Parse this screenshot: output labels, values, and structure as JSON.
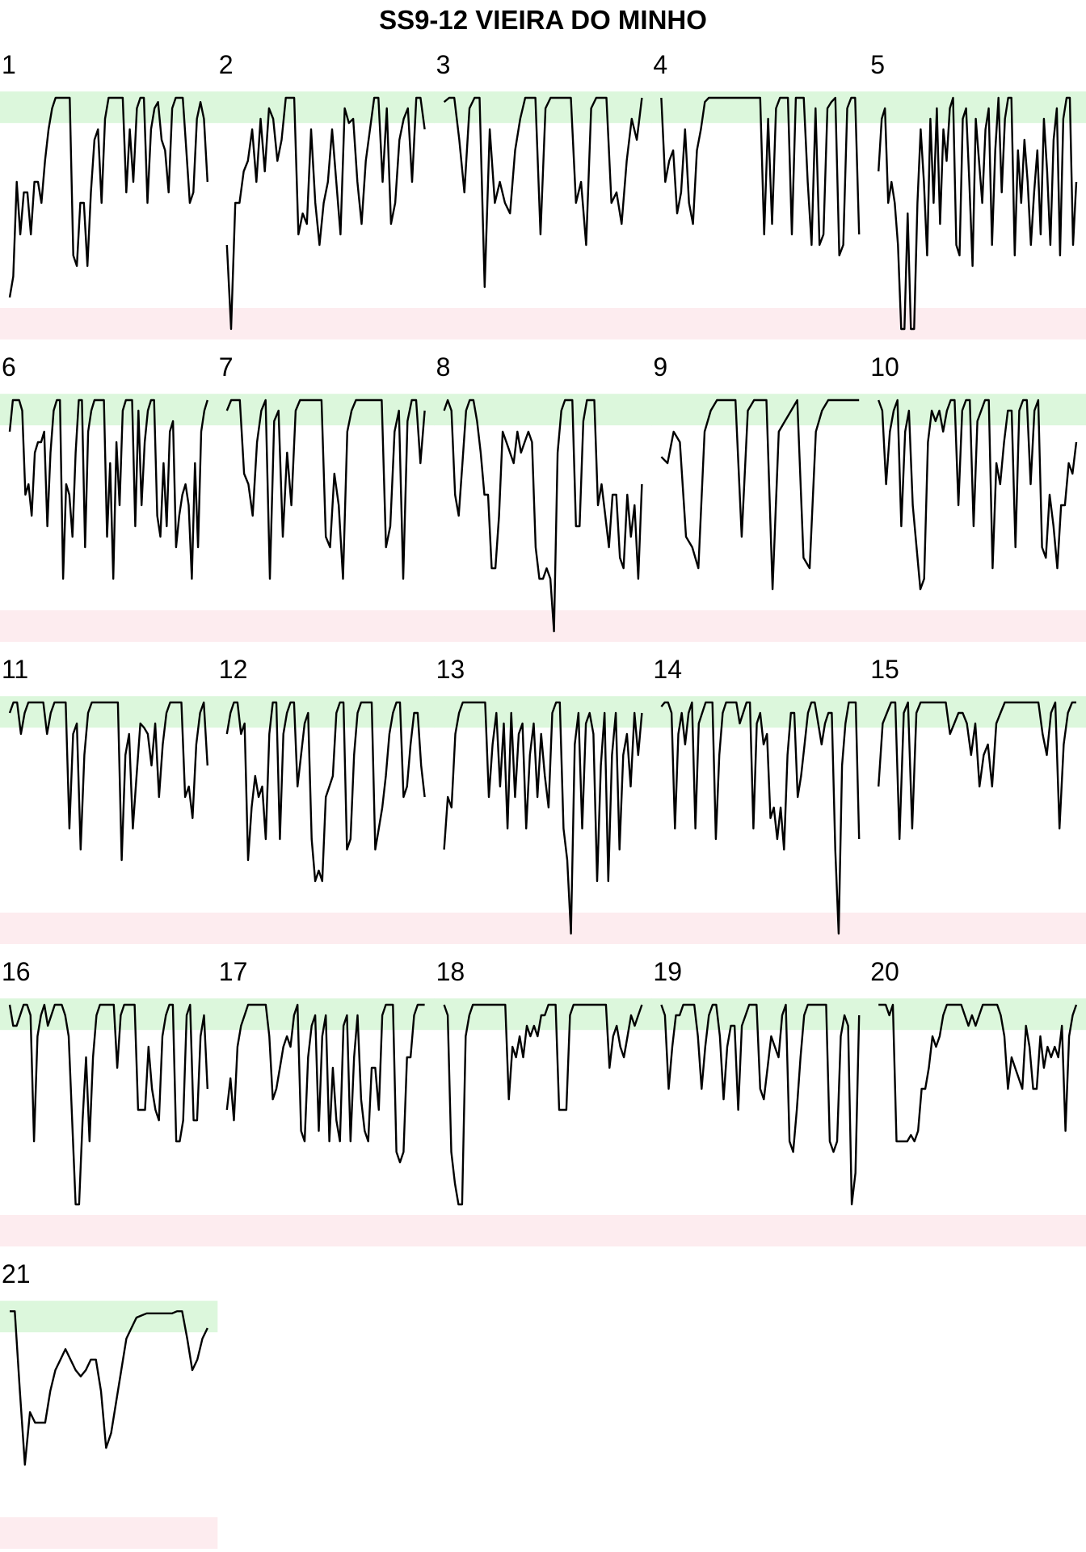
{
  "title": "SS9-12 VIEIRA DO MINHO",
  "colors": {
    "high_band": "#dcf7dc",
    "low_band": "#fdecef",
    "line": "#000000",
    "background": "#ffffff"
  },
  "chart_data": {
    "type": "line",
    "title": "SS9-12 VIEIRA DO MINHO",
    "layout": "small multiples, 5 columns",
    "xlabel": "",
    "ylabel": "",
    "ylim": [
      0,
      1
    ],
    "grid": false,
    "bands": [
      {
        "name": "high",
        "range": [
          0.88,
          1.03
        ],
        "color": "#dcf7dc"
      },
      {
        "name": "low",
        "range": [
          -0.15,
          0.0
        ],
        "color": "#fdecef"
      }
    ],
    "panels": [
      {
        "label": "1",
        "values": [
          0.05,
          0.15,
          0.6,
          0.35,
          0.55,
          0.55,
          0.35,
          0.6,
          0.6,
          0.5,
          0.7,
          0.85,
          0.95,
          1,
          1,
          1,
          1,
          1,
          0.25,
          0.2,
          0.5,
          0.5,
          0.2,
          0.55,
          0.8,
          0.85,
          0.5,
          0.9,
          1,
          1,
          1,
          1,
          1,
          0.55,
          0.85,
          0.6,
          0.95,
          1,
          1,
          0.5,
          0.85,
          0.95,
          0.98,
          0.8,
          0.75,
          0.55,
          0.95,
          1,
          1,
          1,
          0.75,
          0.5,
          0.55,
          0.9,
          0.98,
          0.9,
          0.6
        ]
      },
      {
        "label": "2",
        "values": [
          0.3,
          -0.1,
          0.5,
          0.5,
          0.65,
          0.7,
          0.85,
          0.6,
          0.9,
          0.65,
          0.95,
          0.9,
          0.7,
          0.8,
          1,
          1,
          1,
          0.35,
          0.45,
          0.4,
          0.85,
          0.5,
          0.3,
          0.5,
          0.6,
          0.85,
          0.6,
          0.35,
          0.95,
          0.88,
          0.9,
          0.6,
          0.4,
          0.7,
          0.85,
          1,
          1,
          0.6,
          0.95,
          0.4,
          0.5,
          0.8,
          0.9,
          0.95,
          0.6,
          1,
          1,
          0.85
        ]
      },
      {
        "label": "3",
        "values": [
          0.98,
          1,
          1,
          0.8,
          0.55,
          0.95,
          1,
          1,
          0.1,
          0.85,
          0.5,
          0.6,
          0.5,
          0.45,
          0.75,
          0.9,
          1,
          1,
          1,
          0.35,
          0.95,
          1,
          1,
          1,
          1,
          1,
          0.5,
          0.6,
          0.3,
          0.95,
          1,
          1,
          1,
          0.5,
          0.55,
          0.4,
          0.7,
          0.9,
          0.8,
          1
        ]
      },
      {
        "label": "4",
        "values": [
          1,
          0.6,
          0.7,
          0.75,
          0.45,
          0.55,
          0.85,
          0.5,
          0.4,
          0.75,
          0.85,
          0.98,
          1,
          1,
          1,
          1,
          1,
          1,
          1,
          1,
          1,
          1,
          1,
          1,
          1,
          1,
          0.35,
          0.9,
          0.4,
          0.95,
          1,
          1,
          1,
          0.35,
          1,
          1,
          1,
          0.6,
          0.3,
          0.95,
          0.3,
          0.35,
          0.95,
          0.98,
          1,
          0.25,
          0.3,
          0.95,
          1,
          1,
          0.35
        ]
      },
      {
        "label": "5",
        "values": [
          0.65,
          0.9,
          0.95,
          0.5,
          0.6,
          0.5,
          0.3,
          -0.1,
          -0.1,
          0.45,
          -0.1,
          -0.1,
          0.5,
          0.85,
          0.6,
          0.25,
          0.9,
          0.5,
          0.95,
          0.4,
          0.85,
          0.7,
          0.95,
          1,
          0.3,
          0.25,
          0.9,
          0.95,
          0.6,
          0.2,
          0.9,
          0.7,
          0.5,
          0.85,
          0.95,
          0.3,
          0.75,
          1,
          0.55,
          0.9,
          1,
          1,
          0.25,
          0.75,
          0.5,
          0.8,
          0.6,
          0.3,
          0.55,
          0.75,
          0.35,
          0.9,
          0.65,
          0.3,
          0.8,
          0.95,
          0.25,
          0.9,
          1,
          1,
          0.3,
          0.6
        ]
      },
      {
        "label": "6",
        "values": [
          0.85,
          1,
          1,
          1,
          0.95,
          0.55,
          0.6,
          0.45,
          0.75,
          0.8,
          0.8,
          0.85,
          0.4,
          0.75,
          0.95,
          1,
          1,
          0.15,
          0.6,
          0.55,
          0.35,
          0.75,
          1,
          1,
          0.3,
          0.85,
          0.95,
          1,
          1,
          1,
          1,
          0.35,
          0.7,
          0.15,
          0.8,
          0.5,
          0.95,
          1,
          1,
          1,
          0.4,
          0.95,
          0.5,
          0.8,
          0.95,
          1,
          1,
          0.45,
          0.35,
          0.7,
          0.4,
          0.85,
          0.9,
          0.3,
          0.45,
          0.55,
          0.6,
          0.5,
          0.15,
          0.7,
          0.3,
          0.85,
          0.95,
          1
        ]
      },
      {
        "label": "7",
        "values": [
          0.95,
          1,
          1,
          1,
          0.65,
          0.6,
          0.45,
          0.8,
          0.95,
          1,
          0.15,
          0.9,
          0.95,
          0.35,
          0.75,
          0.5,
          0.95,
          1,
          1,
          1,
          1,
          1,
          1,
          0.35,
          0.3,
          0.65,
          0.5,
          0.15,
          0.85,
          0.95,
          1,
          1,
          1,
          1,
          1,
          1,
          1,
          0.3,
          0.4,
          0.85,
          0.95,
          0.15,
          0.9,
          1,
          1,
          0.7,
          0.95
        ]
      },
      {
        "label": "8",
        "values": [
          0.95,
          1,
          0.95,
          0.55,
          0.45,
          0.7,
          0.95,
          1,
          1,
          0.9,
          0.75,
          0.55,
          0.55,
          0.2,
          0.2,
          0.45,
          0.85,
          0.8,
          0.75,
          0.7,
          0.85,
          0.75,
          0.8,
          0.85,
          0.8,
          0.3,
          0.15,
          0.15,
          0.2,
          0.15,
          -0.1,
          0.75,
          0.95,
          1,
          1,
          1,
          0.4,
          0.4,
          0.9,
          1,
          1,
          1,
          0.5,
          0.6,
          0.45,
          0.3,
          0.55,
          0.55,
          0.25,
          0.2,
          0.55,
          0.35,
          0.5,
          0.15,
          0.6
        ]
      },
      {
        "label": "9",
        "values": [
          0.73,
          0.7,
          0.85,
          0.8,
          0.35,
          0.3,
          0.2,
          0.85,
          0.95,
          1,
          1,
          1,
          1,
          0.35,
          0.95,
          1,
          1,
          1,
          0.1,
          0.85,
          0.9,
          0.95,
          1,
          0.25,
          0.2,
          0.85,
          0.95,
          1,
          1,
          1,
          1,
          1,
          1
        ]
      },
      {
        "label": "10",
        "values": [
          1,
          0.95,
          0.6,
          0.85,
          0.95,
          1,
          0.4,
          0.85,
          0.95,
          0.5,
          0.3,
          0.1,
          0.15,
          0.8,
          0.95,
          0.9,
          0.95,
          0.85,
          0.95,
          1,
          1,
          0.5,
          0.95,
          1,
          1,
          0.4,
          0.9,
          0.95,
          1,
          1,
          0.2,
          0.7,
          0.6,
          0.8,
          0.95,
          0.95,
          0.3,
          0.95,
          1,
          1,
          0.6,
          0.95,
          1,
          0.3,
          0.25,
          0.55,
          0.4,
          0.2,
          0.5,
          0.5,
          0.7,
          0.65,
          0.8
        ]
      },
      {
        "label": "11",
        "values": [
          0.95,
          1,
          1,
          0.85,
          0.95,
          1,
          1,
          1,
          1,
          1,
          0.85,
          0.95,
          1,
          1,
          1,
          1,
          0.4,
          0.85,
          0.9,
          0.3,
          0.75,
          0.95,
          1,
          1,
          1,
          1,
          1,
          1,
          1,
          1,
          0.25,
          0.75,
          0.85,
          0.4,
          0.65,
          0.9,
          0.88,
          0.85,
          0.7,
          0.9,
          0.55,
          0.8,
          0.95,
          1,
          1,
          1,
          1,
          0.55,
          0.6,
          0.45,
          0.8,
          0.95,
          1,
          0.7
        ]
      },
      {
        "label": "12",
        "values": [
          0.85,
          0.95,
          1,
          1,
          0.85,
          0.9,
          0.25,
          0.5,
          0.65,
          0.55,
          0.6,
          0.35,
          0.85,
          1,
          1,
          0.35,
          0.85,
          0.95,
          1,
          1,
          0.6,
          0.75,
          0.9,
          0.95,
          0.35,
          0.15,
          0.2,
          0.15,
          0.55,
          0.6,
          0.65,
          0.95,
          1,
          1,
          0.3,
          0.35,
          0.75,
          0.95,
          1,
          1,
          1,
          1,
          0.3,
          0.4,
          0.5,
          0.65,
          0.85,
          0.95,
          1,
          1,
          0.55,
          0.6,
          0.8,
          0.95,
          0.95,
          0.7,
          0.55
        ]
      },
      {
        "label": "13",
        "values": [
          0.3,
          0.55,
          0.5,
          0.85,
          0.95,
          1,
          1,
          1,
          1,
          1,
          1,
          1,
          0.55,
          0.8,
          0.95,
          0.6,
          0.9,
          0.4,
          0.95,
          0.55,
          0.85,
          0.9,
          0.4,
          0.75,
          0.9,
          0.55,
          0.85,
          0.65,
          0.5,
          0.95,
          1,
          1,
          0.4,
          0.25,
          -0.1,
          0.8,
          0.95,
          0.4,
          0.9,
          0.95,
          0.85,
          0.15,
          0.7,
          0.95,
          0.15,
          0.75,
          0.95,
          0.3,
          0.75,
          0.85,
          0.6,
          0.95,
          0.75,
          0.95
        ]
      },
      {
        "label": "14",
        "values": [
          0.98,
          1,
          1,
          0.95,
          0.4,
          0.85,
          0.95,
          0.8,
          0.95,
          1,
          0.4,
          0.9,
          0.95,
          1,
          1,
          1,
          0.35,
          0.75,
          0.95,
          1,
          1,
          1,
          1,
          0.9,
          0.95,
          1,
          1,
          0.4,
          0.9,
          0.95,
          0.8,
          0.85,
          0.45,
          0.5,
          0.35,
          0.5,
          0.3,
          0.75,
          0.95,
          0.95,
          0.55,
          0.65,
          0.8,
          0.95,
          1,
          1,
          0.9,
          0.8,
          0.9,
          0.95,
          0.95,
          0.3,
          -0.1,
          0.7,
          0.9,
          1,
          1,
          1,
          0.35
        ]
      },
      {
        "label": "15",
        "values": [
          0.6,
          0.9,
          0.95,
          1,
          1,
          0.35,
          0.95,
          1,
          0.4,
          0.95,
          1,
          1,
          1,
          1,
          1,
          1,
          1,
          0.85,
          0.9,
          0.95,
          0.95,
          0.9,
          0.75,
          0.9,
          0.6,
          0.75,
          0.8,
          0.6,
          0.9,
          0.95,
          1,
          1,
          1,
          1,
          1,
          1,
          1,
          1,
          1,
          0.85,
          0.75,
          0.95,
          1,
          0.4,
          0.8,
          0.95,
          1,
          1
        ]
      },
      {
        "label": "16",
        "values": [
          1,
          0.9,
          0.9,
          0.95,
          1,
          1,
          0.95,
          0.35,
          0.85,
          0.95,
          1,
          0.9,
          0.95,
          1,
          1,
          1,
          0.95,
          0.85,
          0.45,
          0.05,
          0.05,
          0.45,
          0.75,
          0.35,
          0.75,
          0.95,
          1,
          1,
          1,
          1,
          1,
          0.7,
          0.95,
          1,
          1,
          1,
          1,
          0.5,
          0.5,
          0.5,
          0.8,
          0.6,
          0.5,
          0.45,
          0.85,
          0.95,
          1,
          1,
          0.35,
          0.35,
          0.45,
          0.95,
          1,
          0.45,
          0.45,
          0.85,
          0.95,
          0.6
        ]
      },
      {
        "label": "17",
        "values": [
          0.5,
          0.65,
          0.45,
          0.8,
          0.9,
          0.95,
          1,
          1,
          1,
          1,
          1,
          1,
          0.85,
          0.55,
          0.6,
          0.7,
          0.8,
          0.85,
          0.8,
          0.95,
          1,
          0.4,
          0.35,
          0.75,
          0.9,
          0.95,
          0.4,
          0.85,
          0.95,
          0.35,
          0.7,
          0.45,
          0.35,
          0.9,
          0.95,
          0.35,
          0.75,
          0.95,
          0.55,
          0.4,
          0.35,
          0.7,
          0.7,
          0.5,
          0.95,
          1,
          1,
          1,
          0.3,
          0.25,
          0.3,
          0.75,
          0.75,
          0.95,
          1,
          1,
          1
        ]
      },
      {
        "label": "18",
        "values": [
          1,
          0.95,
          0.3,
          0.15,
          0.05,
          0.05,
          0.85,
          0.95,
          1,
          1,
          1,
          1,
          1,
          1,
          1,
          1,
          1,
          1,
          0.55,
          0.8,
          0.75,
          0.85,
          0.75,
          0.9,
          0.85,
          0.9,
          0.85,
          0.95,
          0.95,
          1,
          1,
          1,
          0.5,
          0.5,
          0.5,
          0.95,
          1,
          1,
          1,
          1,
          1,
          1,
          1,
          1,
          1,
          1,
          0.7,
          0.85,
          0.9,
          0.8,
          0.75,
          0.85,
          0.95,
          0.9,
          0.95,
          1
        ]
      },
      {
        "label": "19",
        "values": [
          1,
          0.95,
          0.6,
          0.8,
          0.95,
          0.95,
          1,
          1,
          1,
          1,
          0.85,
          0.6,
          0.8,
          0.95,
          1,
          1,
          0.85,
          0.55,
          0.8,
          0.9,
          0.9,
          0.5,
          0.9,
          0.95,
          1,
          1,
          1,
          0.6,
          0.55,
          0.7,
          0.85,
          0.8,
          0.75,
          0.95,
          1,
          0.35,
          0.3,
          0.5,
          0.75,
          0.95,
          1,
          1,
          1,
          1,
          1,
          1,
          0.35,
          0.3,
          0.35,
          0.85,
          0.95,
          0.9,
          0.05,
          0.2,
          0.95
        ]
      },
      {
        "label": "20",
        "values": [
          1,
          1,
          1,
          0.95,
          1,
          0.35,
          0.35,
          0.35,
          0.35,
          0.38,
          0.35,
          0.4,
          0.6,
          0.6,
          0.7,
          0.85,
          0.8,
          0.85,
          0.95,
          1,
          1,
          1,
          1,
          1,
          0.95,
          0.9,
          0.95,
          0.9,
          0.95,
          1,
          1,
          1,
          1,
          1,
          0.95,
          0.85,
          0.6,
          0.75,
          0.7,
          0.65,
          0.6,
          0.9,
          0.8,
          0.6,
          0.6,
          0.85,
          0.7,
          0.8,
          0.75,
          0.8,
          0.75,
          0.9,
          0.4,
          0.85,
          0.95,
          1
        ]
      },
      {
        "label": "21",
        "values": [
          0.98,
          0.98,
          0.6,
          0.25,
          0.5,
          0.45,
          0.45,
          0.45,
          0.6,
          0.7,
          0.75,
          0.8,
          0.75,
          0.7,
          0.67,
          0.7,
          0.75,
          0.75,
          0.6,
          0.33,
          0.4,
          0.55,
          0.7,
          0.85,
          0.9,
          0.95,
          0.96,
          0.97,
          0.97,
          0.97,
          0.97,
          0.97,
          0.97,
          0.98,
          0.98,
          0.85,
          0.7,
          0.75,
          0.85,
          0.9
        ]
      }
    ]
  }
}
